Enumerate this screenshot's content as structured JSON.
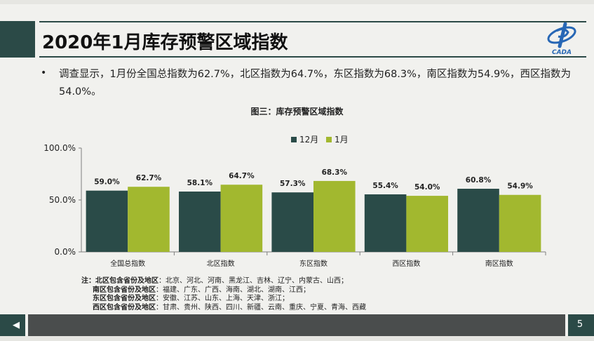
{
  "slide": {
    "title": "2020年1月库存预警区域指数",
    "bullet": "•",
    "summary": "调查显示，1月份全国总指数为62.7%，北区指数为64.7%，东区指数为68.3%，南区指数为54.9%，西区指数为54.0%。",
    "page_number": "5",
    "nav_prev_icon": "◀",
    "logo_text": "CADA"
  },
  "colors": {
    "dark_green": "#2a4b48",
    "lime": "#a2b82f",
    "brand": "#2a4b48",
    "logo_blue": "#2767b5"
  },
  "chart_data": {
    "type": "bar",
    "title": "图三：库存预警区域指数",
    "categories": [
      "全国总指数",
      "北区指数",
      "东区指数",
      "西区指数",
      "南区指数"
    ],
    "series": [
      {
        "name": "12月",
        "values": [
          59.0,
          58.1,
          57.3,
          55.4,
          60.8
        ],
        "labels": [
          "59.0%",
          "58.1%",
          "57.3%",
          "55.4%",
          "60.8%"
        ]
      },
      {
        "name": "1月",
        "values": [
          62.7,
          64.7,
          68.3,
          54.0,
          54.9
        ],
        "labels": [
          "62.7%",
          "64.7%",
          "68.3%",
          "54.0%",
          "54.9%"
        ]
      }
    ],
    "ylim": [
      0,
      100
    ],
    "yticks": [
      0,
      50,
      100
    ],
    "ytick_labels": [
      "0.0%",
      "50.0%",
      "100.0%"
    ],
    "legend_position": "top-center",
    "grid": false
  },
  "footnote": {
    "prefix": "注：",
    "lines": [
      {
        "key": "北区包含省份及地区",
        "value": "：北京、河北、河南、黑龙江、吉林、辽宁、内蒙古、山西；"
      },
      {
        "key": "南区包含省份及地区",
        "value": "：福建、广东、广西、海南、湖北、湖南、江西；"
      },
      {
        "key": "东区包含省份及地区",
        "value": "：安徽、江苏、山东、上海、天津、浙江；"
      },
      {
        "key": "西区包含省份及地区",
        "value": "：甘肃、贵州、陕西、四川、新疆、云南、重庆、宁夏、青海、西藏"
      }
    ]
  }
}
